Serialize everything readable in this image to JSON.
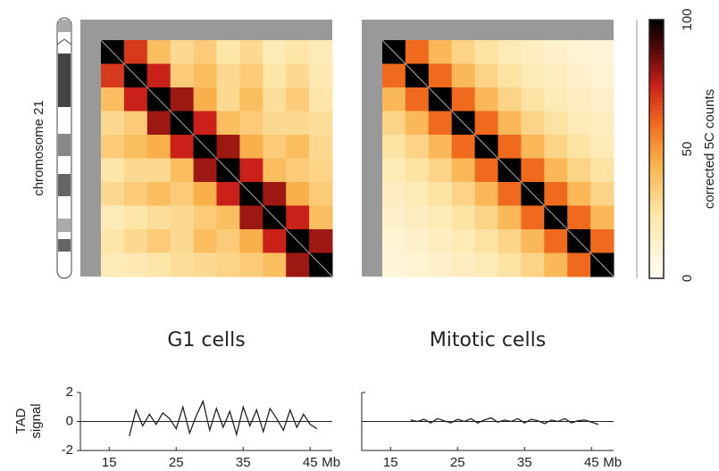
{
  "chart_data": [
    {
      "type": "ideogram",
      "label": "chromosome 21"
    },
    {
      "type": "heatmap",
      "title": "G1 cells",
      "clim": [
        0,
        100
      ],
      "matrix": [
        [
          100,
          70,
          40,
          30,
          35,
          25,
          30,
          20,
          25,
          20
        ],
        [
          70,
          100,
          75,
          35,
          40,
          30,
          35,
          25,
          30,
          22
        ],
        [
          40,
          75,
          100,
          80,
          45,
          30,
          40,
          28,
          35,
          25
        ],
        [
          30,
          35,
          80,
          100,
          75,
          40,
          35,
          30,
          30,
          28
        ],
        [
          35,
          40,
          45,
          75,
          100,
          80,
          45,
          35,
          40,
          30
        ],
        [
          25,
          30,
          30,
          40,
          80,
          100,
          75,
          40,
          35,
          32
        ],
        [
          30,
          35,
          40,
          35,
          45,
          75,
          100,
          80,
          45,
          35
        ],
        [
          20,
          25,
          28,
          30,
          35,
          40,
          80,
          100,
          75,
          40
        ],
        [
          25,
          30,
          35,
          30,
          40,
          35,
          45,
          75,
          100,
          80
        ],
        [
          20,
          22,
          25,
          28,
          30,
          32,
          35,
          40,
          80,
          100
        ]
      ]
    },
    {
      "type": "heatmap",
      "title": "Mitotic cells",
      "clim": [
        0,
        100
      ],
      "matrix": [
        [
          100,
          60,
          42,
          32,
          26,
          21,
          17,
          14,
          11,
          9
        ],
        [
          60,
          100,
          60,
          42,
          32,
          26,
          21,
          17,
          14,
          11
        ],
        [
          42,
          60,
          100,
          60,
          42,
          32,
          26,
          21,
          17,
          14
        ],
        [
          32,
          42,
          60,
          100,
          60,
          42,
          32,
          26,
          21,
          17
        ],
        [
          26,
          32,
          42,
          60,
          100,
          60,
          42,
          32,
          26,
          21
        ],
        [
          21,
          26,
          32,
          42,
          60,
          100,
          60,
          42,
          32,
          26
        ],
        [
          17,
          21,
          26,
          32,
          42,
          60,
          100,
          60,
          42,
          32
        ],
        [
          14,
          17,
          21,
          26,
          32,
          42,
          60,
          100,
          60,
          42
        ],
        [
          11,
          14,
          17,
          21,
          26,
          32,
          42,
          60,
          100,
          60
        ],
        [
          9,
          11,
          14,
          17,
          21,
          26,
          32,
          42,
          60,
          100
        ]
      ]
    },
    {
      "type": "colorbar",
      "label": "corrected 5C counts",
      "clim": [
        0,
        100
      ],
      "ticks": [
        0,
        50,
        100
      ]
    },
    {
      "type": "line",
      "ylabel": [
        "TAD",
        "signal"
      ],
      "xlabel": "Mb",
      "xlim": [
        10.7,
        48.3
      ],
      "xticks": [
        15,
        25,
        35,
        45
      ],
      "ylim": [
        -2,
        2
      ],
      "yticks": [
        -2,
        0,
        2
      ],
      "series": [
        {
          "color": "#222222",
          "x": [
            18,
            19,
            20,
            21,
            22,
            23,
            24,
            25,
            26,
            27,
            28,
            29,
            30,
            31,
            32,
            33,
            34,
            35,
            36,
            37,
            38,
            39,
            40,
            41,
            42,
            43,
            44,
            45,
            46
          ],
          "values": [
            -1.0,
            0.8,
            -0.3,
            0.5,
            -0.2,
            0.6,
            0.2,
            -0.5,
            1.0,
            -0.8,
            0.4,
            1.4,
            -0.6,
            0.9,
            -0.4,
            0.7,
            -0.9,
            1.0,
            -0.3,
            0.8,
            -0.7,
            0.9,
            0.2,
            -0.6,
            0.8,
            -0.4,
            0.5,
            -0.2,
            -0.5
          ]
        }
      ]
    },
    {
      "type": "line",
      "xlabel": "Mb",
      "xlim": [
        10.7,
        48.3
      ],
      "xticks": [
        15,
        25,
        35,
        45
      ],
      "ylim": [
        -2,
        2
      ],
      "series": [
        {
          "color": "#222222",
          "x": [
            18,
            19,
            20,
            21,
            22,
            23,
            24,
            25,
            26,
            27,
            28,
            29,
            30,
            31,
            32,
            33,
            34,
            35,
            36,
            37,
            38,
            39,
            40,
            41,
            42,
            43,
            44,
            45,
            46
          ],
          "values": [
            0.1,
            0.0,
            0.15,
            -0.1,
            0.2,
            0.05,
            -0.1,
            0.15,
            0.0,
            0.2,
            -0.1,
            0.1,
            0.25,
            -0.05,
            0.1,
            0.0,
            0.2,
            -0.1,
            0.15,
            0.05,
            -0.15,
            0.1,
            0.0,
            0.2,
            -0.1,
            0.05,
            0.1,
            -0.05,
            -0.2
          ]
        }
      ]
    }
  ]
}
